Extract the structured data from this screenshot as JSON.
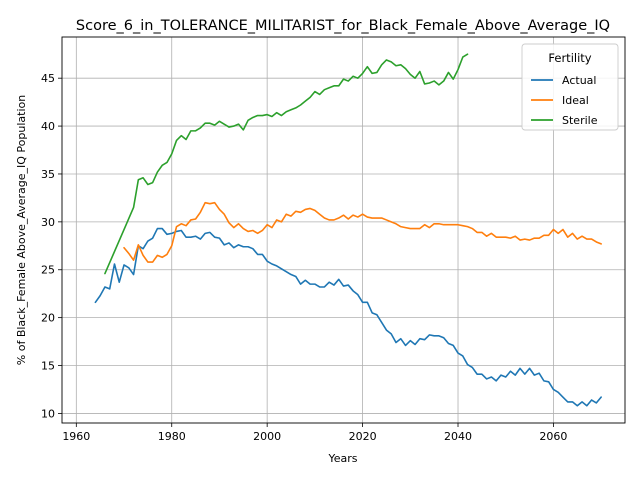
{
  "chart_data": {
    "type": "line",
    "title": "Score_6_in_TOLERANCE_MILITARIST_for_Black_Female_Above_Average_IQ",
    "xlabel": "Years",
    "ylabel": "% of Black_Female Above_Average_IQ Population",
    "xlim": [
      1957,
      2075
    ],
    "ylim": [
      9,
      49.3
    ],
    "xticks": [
      1960,
      1980,
      2000,
      2020,
      2040,
      2060
    ],
    "yticks": [
      10,
      15,
      20,
      25,
      30,
      35,
      40,
      45
    ],
    "grid": true,
    "legend": {
      "title": "Fertility",
      "placement": "top-right"
    },
    "series": [
      {
        "name": "Actual",
        "color": "#1f77b4",
        "points": [
          [
            1964,
            21.6
          ],
          [
            1965,
            22.3
          ],
          [
            1966,
            23.2
          ],
          [
            1967,
            23.0
          ],
          [
            1968,
            25.6
          ],
          [
            1969,
            23.7
          ],
          [
            1970,
            25.5
          ],
          [
            1971,
            25.2
          ],
          [
            1972,
            24.5
          ],
          [
            1973,
            27.5
          ],
          [
            1974,
            27.2
          ],
          [
            1975,
            28.0
          ],
          [
            1976,
            28.3
          ],
          [
            1977,
            29.3
          ],
          [
            1978,
            29.3
          ],
          [
            1979,
            28.7
          ],
          [
            1980,
            28.8
          ],
          [
            1981,
            29.0
          ],
          [
            1982,
            29.1
          ],
          [
            1983,
            28.4
          ],
          [
            1984,
            28.4
          ],
          [
            1985,
            28.5
          ],
          [
            1986,
            28.2
          ],
          [
            1987,
            28.8
          ],
          [
            1988,
            28.9
          ],
          [
            1989,
            28.4
          ],
          [
            1990,
            28.3
          ],
          [
            1991,
            27.6
          ],
          [
            1992,
            27.8
          ],
          [
            1993,
            27.3
          ],
          [
            1994,
            27.6
          ],
          [
            1995,
            27.4
          ],
          [
            1996,
            27.4
          ],
          [
            1997,
            27.2
          ],
          [
            1998,
            26.6
          ],
          [
            1999,
            26.6
          ],
          [
            2000,
            25.9
          ],
          [
            2001,
            25.6
          ],
          [
            2002,
            25.4
          ],
          [
            2003,
            25.1
          ],
          [
            2004,
            24.8
          ],
          [
            2005,
            24.5
          ],
          [
            2006,
            24.3
          ],
          [
            2007,
            23.5
          ],
          [
            2008,
            23.9
          ],
          [
            2009,
            23.5
          ],
          [
            2010,
            23.5
          ],
          [
            2011,
            23.2
          ],
          [
            2012,
            23.2
          ],
          [
            2013,
            23.7
          ],
          [
            2014,
            23.4
          ],
          [
            2015,
            24.0
          ],
          [
            2016,
            23.3
          ],
          [
            2017,
            23.4
          ],
          [
            2018,
            22.8
          ],
          [
            2019,
            22.4
          ],
          [
            2020,
            21.6
          ],
          [
            2021,
            21.6
          ],
          [
            2022,
            20.5
          ],
          [
            2023,
            20.3
          ],
          [
            2024,
            19.5
          ],
          [
            2025,
            18.7
          ],
          [
            2026,
            18.3
          ],
          [
            2027,
            17.4
          ],
          [
            2028,
            17.8
          ],
          [
            2029,
            17.1
          ],
          [
            2030,
            17.6
          ],
          [
            2031,
            17.2
          ],
          [
            2032,
            17.8
          ],
          [
            2033,
            17.7
          ],
          [
            2034,
            18.2
          ],
          [
            2035,
            18.1
          ],
          [
            2036,
            18.1
          ],
          [
            2037,
            17.9
          ],
          [
            2038,
            17.3
          ],
          [
            2039,
            17.1
          ],
          [
            2040,
            16.3
          ],
          [
            2041,
            16.0
          ],
          [
            2042,
            15.1
          ],
          [
            2043,
            14.8
          ],
          [
            2044,
            14.1
          ],
          [
            2045,
            14.1
          ],
          [
            2046,
            13.6
          ],
          [
            2047,
            13.8
          ],
          [
            2048,
            13.4
          ],
          [
            2049,
            14.0
          ],
          [
            2050,
            13.8
          ],
          [
            2051,
            14.4
          ],
          [
            2052,
            14.0
          ],
          [
            2053,
            14.7
          ],
          [
            2054,
            14.1
          ],
          [
            2055,
            14.7
          ],
          [
            2056,
            14.0
          ],
          [
            2057,
            14.2
          ],
          [
            2058,
            13.4
          ],
          [
            2059,
            13.3
          ],
          [
            2060,
            12.5
          ],
          [
            2061,
            12.2
          ],
          [
            2062,
            11.7
          ],
          [
            2063,
            11.2
          ],
          [
            2064,
            11.2
          ],
          [
            2065,
            10.8
          ],
          [
            2066,
            11.2
          ],
          [
            2067,
            10.8
          ],
          [
            2068,
            11.4
          ],
          [
            2069,
            11.1
          ],
          [
            2070,
            11.7
          ]
        ]
      },
      {
        "name": "Ideal",
        "color": "#ff7f0e",
        "points": [
          [
            1970,
            27.3
          ],
          [
            1971,
            26.7
          ],
          [
            1972,
            26.0
          ],
          [
            1973,
            27.6
          ],
          [
            1974,
            26.5
          ],
          [
            1975,
            25.8
          ],
          [
            1976,
            25.8
          ],
          [
            1977,
            26.5
          ],
          [
            1978,
            26.3
          ],
          [
            1979,
            26.6
          ],
          [
            1980,
            27.5
          ],
          [
            1981,
            29.5
          ],
          [
            1982,
            29.8
          ],
          [
            1983,
            29.6
          ],
          [
            1984,
            30.2
          ],
          [
            1985,
            30.3
          ],
          [
            1986,
            31.0
          ],
          [
            1987,
            32.0
          ],
          [
            1988,
            31.9
          ],
          [
            1989,
            32.0
          ],
          [
            1990,
            31.3
          ],
          [
            1991,
            30.8
          ],
          [
            1992,
            29.9
          ],
          [
            1993,
            29.4
          ],
          [
            1994,
            29.8
          ],
          [
            1995,
            29.3
          ],
          [
            1996,
            29.0
          ],
          [
            1997,
            29.1
          ],
          [
            1998,
            28.8
          ],
          [
            1999,
            29.1
          ],
          [
            2000,
            29.7
          ],
          [
            2001,
            29.4
          ],
          [
            2002,
            30.2
          ],
          [
            2003,
            30.0
          ],
          [
            2004,
            30.8
          ],
          [
            2005,
            30.6
          ],
          [
            2006,
            31.1
          ],
          [
            2007,
            31.0
          ],
          [
            2008,
            31.3
          ],
          [
            2009,
            31.4
          ],
          [
            2010,
            31.2
          ],
          [
            2011,
            30.8
          ],
          [
            2012,
            30.4
          ],
          [
            2013,
            30.2
          ],
          [
            2014,
            30.2
          ],
          [
            2015,
            30.4
          ],
          [
            2016,
            30.7
          ],
          [
            2017,
            30.3
          ],
          [
            2018,
            30.7
          ],
          [
            2019,
            30.5
          ],
          [
            2020,
            30.8
          ],
          [
            2021,
            30.5
          ],
          [
            2022,
            30.4
          ],
          [
            2023,
            30.4
          ],
          [
            2024,
            30.4
          ],
          [
            2025,
            30.2
          ],
          [
            2026,
            30.0
          ],
          [
            2027,
            29.8
          ],
          [
            2028,
            29.5
          ],
          [
            2029,
            29.4
          ],
          [
            2030,
            29.3
          ],
          [
            2031,
            29.3
          ],
          [
            2032,
            29.3
          ],
          [
            2033,
            29.7
          ],
          [
            2034,
            29.4
          ],
          [
            2035,
            29.8
          ],
          [
            2036,
            29.8
          ],
          [
            2037,
            29.7
          ],
          [
            2038,
            29.7
          ],
          [
            2039,
            29.7
          ],
          [
            2040,
            29.7
          ],
          [
            2041,
            29.6
          ],
          [
            2042,
            29.5
          ],
          [
            2043,
            29.3
          ],
          [
            2044,
            28.9
          ],
          [
            2045,
            28.9
          ],
          [
            2046,
            28.5
          ],
          [
            2047,
            28.8
          ],
          [
            2048,
            28.4
          ],
          [
            2049,
            28.4
          ],
          [
            2050,
            28.4
          ],
          [
            2051,
            28.3
          ],
          [
            2052,
            28.5
          ],
          [
            2053,
            28.1
          ],
          [
            2054,
            28.2
          ],
          [
            2055,
            28.1
          ],
          [
            2056,
            28.3
          ],
          [
            2057,
            28.3
          ],
          [
            2058,
            28.6
          ],
          [
            2059,
            28.6
          ],
          [
            2060,
            29.2
          ],
          [
            2061,
            28.8
          ],
          [
            2062,
            29.2
          ],
          [
            2063,
            28.4
          ],
          [
            2064,
            28.8
          ],
          [
            2065,
            28.2
          ],
          [
            2066,
            28.5
          ],
          [
            2067,
            28.2
          ],
          [
            2068,
            28.2
          ],
          [
            2069,
            27.9
          ],
          [
            2070,
            27.7
          ]
        ]
      },
      {
        "name": "Sterile",
        "color": "#2ca02c",
        "points": [
          [
            1966,
            24.6
          ],
          [
            1972,
            31.5
          ],
          [
            1973,
            34.4
          ],
          [
            1974,
            34.6
          ],
          [
            1975,
            33.9
          ],
          [
            1976,
            34.1
          ],
          [
            1977,
            35.2
          ],
          [
            1978,
            35.9
          ],
          [
            1979,
            36.2
          ],
          [
            1980,
            37.1
          ],
          [
            1981,
            38.5
          ],
          [
            1982,
            39.0
          ],
          [
            1983,
            38.6
          ],
          [
            1984,
            39.5
          ],
          [
            1985,
            39.5
          ],
          [
            1986,
            39.8
          ],
          [
            1987,
            40.3
          ],
          [
            1988,
            40.3
          ],
          [
            1989,
            40.1
          ],
          [
            1990,
            40.5
          ],
          [
            1991,
            40.2
          ],
          [
            1992,
            39.9
          ],
          [
            1993,
            40.0
          ],
          [
            1994,
            40.2
          ],
          [
            1995,
            39.6
          ],
          [
            1996,
            40.6
          ],
          [
            1997,
            40.9
          ],
          [
            1998,
            41.1
          ],
          [
            1999,
            41.1
          ],
          [
            2000,
            41.2
          ],
          [
            2001,
            41.0
          ],
          [
            2002,
            41.4
          ],
          [
            2003,
            41.1
          ],
          [
            2004,
            41.5
          ],
          [
            2005,
            41.7
          ],
          [
            2006,
            41.9
          ],
          [
            2007,
            42.2
          ],
          [
            2008,
            42.6
          ],
          [
            2009,
            43.0
          ],
          [
            2010,
            43.6
          ],
          [
            2011,
            43.3
          ],
          [
            2012,
            43.8
          ],
          [
            2013,
            44.0
          ],
          [
            2014,
            44.2
          ],
          [
            2015,
            44.2
          ],
          [
            2016,
            44.9
          ],
          [
            2017,
            44.7
          ],
          [
            2018,
            45.2
          ],
          [
            2019,
            45.0
          ],
          [
            2020,
            45.5
          ],
          [
            2021,
            46.2
          ],
          [
            2022,
            45.5
          ],
          [
            2023,
            45.6
          ],
          [
            2024,
            46.4
          ],
          [
            2025,
            46.9
          ],
          [
            2026,
            46.7
          ],
          [
            2027,
            46.3
          ],
          [
            2028,
            46.4
          ],
          [
            2029,
            46.0
          ],
          [
            2030,
            45.4
          ],
          [
            2031,
            45.0
          ],
          [
            2032,
            45.7
          ],
          [
            2033,
            44.4
          ],
          [
            2034,
            44.5
          ],
          [
            2035,
            44.7
          ],
          [
            2036,
            44.3
          ],
          [
            2037,
            44.7
          ],
          [
            2038,
            45.6
          ],
          [
            2039,
            44.9
          ],
          [
            2040,
            45.9
          ],
          [
            2041,
            47.2
          ],
          [
            2042,
            47.5
          ]
        ]
      }
    ]
  }
}
